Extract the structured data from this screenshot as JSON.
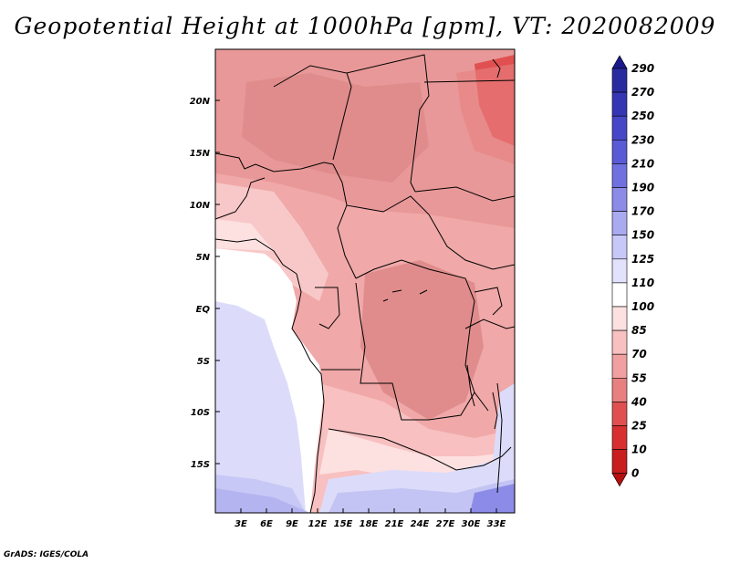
{
  "title": "Geopotential Height at 1000hPa [gpm], VT: 2020082009",
  "credit": "GrADS: IGES/COLA",
  "map": {
    "lat_labels": [
      "20N",
      "15N",
      "10N",
      "5N",
      "EQ",
      "5S",
      "10S",
      "15S"
    ],
    "lon_labels": [
      "3E",
      "6E",
      "9E",
      "12E",
      "15E",
      "18E",
      "21E",
      "24E",
      "27E",
      "30E",
      "33E"
    ]
  },
  "colorbar": {
    "labels": [
      "290",
      "270",
      "250",
      "230",
      "210",
      "190",
      "170",
      "150",
      "125",
      "110",
      "100",
      "85",
      "70",
      "55",
      "40",
      "25",
      "10",
      "0"
    ],
    "colors": [
      "#1a1a8c",
      "#2a2aa0",
      "#3636b4",
      "#4646c8",
      "#5a5ad6",
      "#7070e0",
      "#8c8ce8",
      "#aaaaf0",
      "#c8c8f8",
      "#e2e2fc",
      "#ffffff",
      "#fde0e0",
      "#f8c0c0",
      "#f0a0a0",
      "#e88080",
      "#e05050",
      "#d83030",
      "#c81e1e",
      "#b41010"
    ]
  }
}
